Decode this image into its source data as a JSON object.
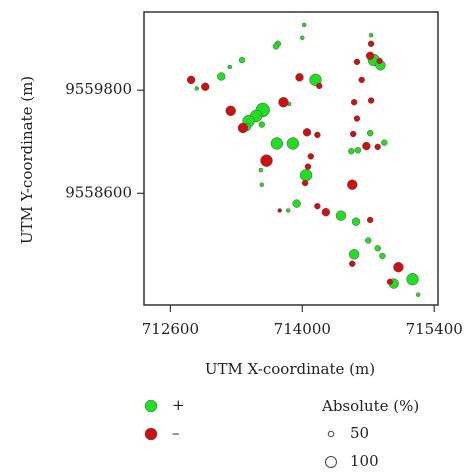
{
  "chart_data": {
    "type": "scatter",
    "x_label": "UTM X-coordinate (m)",
    "y_label": "UTM Y-coordinate (m)",
    "xlim": [
      712320,
      715440
    ],
    "ylim": [
      9557300,
      9560710
    ],
    "xticks": [
      712600,
      714000,
      715400
    ],
    "yticks": [
      9558600,
      9559800
    ],
    "size_legend": {
      "title": "Absolute (%)",
      "values": [
        50,
        100
      ]
    },
    "series": [
      {
        "name": "+",
        "color": "#22dd22",
        "x": [
          714020,
          714000,
          713740,
          713720,
          713360,
          713230,
          713140,
          712880,
          714140,
          713580,
          713510,
          713430,
          713570,
          713410,
          713730,
          713900,
          714040,
          713560,
          713570,
          713940,
          713850,
          714410,
          714570,
          714550,
          714700,
          714800,
          714850,
          714970,
          715170,
          715230,
          714870,
          714590,
          714520,
          714720,
          714760,
          714830,
          714730,
          713860
        ],
        "y": [
          9560560,
          9560410,
          9560340,
          9560310,
          9560150,
          9560070,
          9559960,
          9559820,
          9559920,
          9559570,
          9559500,
          9559440,
          9559400,
          9559370,
          9559180,
          9559180,
          9558810,
          9558870,
          9558700,
          9558480,
          9558400,
          9558340,
          9558270,
          9557890,
          9558050,
          9557960,
          9557870,
          9557550,
          9557600,
          9557420,
          9559190,
          9559100,
          9559090,
          9559300,
          9560150,
          9560090,
          9560440,
          9559640
        ],
        "sizes": [
          36,
          36,
          54,
          54,
          54,
          36,
          72,
          36,
          108,
          126,
          108,
          108,
          54,
          72,
          108,
          108,
          108,
          36,
          36,
          72,
          36,
          90,
          72,
          90,
          54,
          54,
          54,
          90,
          108,
          36,
          54,
          54,
          54,
          54,
          108,
          90,
          36,
          36
        ]
      },
      {
        "name": "–",
        "color": "#cc1111",
        "x": [
          712820,
          712970,
          713240,
          713370,
          713620,
          713800,
          713970,
          714180,
          714050,
          714160,
          714090,
          714060,
          714030,
          713760,
          714160,
          714250,
          714530,
          714630,
          714550,
          714580,
          714540,
          714680,
          714800,
          714720,
          714730,
          714820,
          714730,
          714580,
          714530,
          715020,
          714930,
          714720
        ],
        "y": [
          9559920,
          9559840,
          9559560,
          9559360,
          9558980,
          9559660,
          9559950,
          9559850,
          9559310,
          9559280,
          9559030,
          9558910,
          9558720,
          9558400,
          9558450,
          9558380,
          9558700,
          9559920,
          9559660,
          9559470,
          9559290,
          9559150,
          9559140,
          9560200,
          9560340,
          9560140,
          9559680,
          9560130,
          9557780,
          9557740,
          9557570,
          9558290
        ],
        "sizes": [
          72,
          72,
          90,
          90,
          108,
          90,
          72,
          54,
          72,
          54,
          54,
          54,
          54,
          36,
          54,
          72,
          90,
          54,
          54,
          54,
          54,
          72,
          54,
          72,
          54,
          54,
          54,
          54,
          54,
          90,
          54,
          54
        ]
      }
    ]
  }
}
